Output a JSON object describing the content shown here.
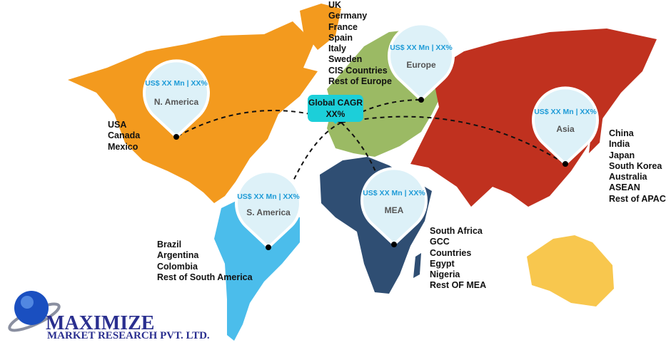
{
  "colors": {
    "north_america": "#F39A1E",
    "south_america": "#4BBDEB",
    "europe": "#9BBA64",
    "africa": "#2F4E73",
    "asia": "#C0311F",
    "australia": "#F8C74E",
    "pin_fill": "#DDF1F8",
    "pin_value_text": "#1E9BD7",
    "cagr_box": "#1CCFD9"
  },
  "global_cagr": {
    "title": "Global CAGR",
    "value": "XX%"
  },
  "regions": [
    {
      "name": "N. America",
      "value": "US$ XX Mn | XX%",
      "countries": [
        "USA",
        "Canada",
        "Mexico"
      ]
    },
    {
      "name": "Europe",
      "value": "US$ XX Mn | XX%",
      "countries": [
        "UK",
        "Germany",
        "France",
        "Spain",
        "Italy",
        "Sweden",
        "CIS Countries",
        "Rest of Europe"
      ]
    },
    {
      "name": "Asia",
      "value": "US$ XX Mn | XX%",
      "countries": [
        "China",
        "India",
        "Japan",
        "South Korea",
        "Australia",
        "ASEAN",
        "Rest of APAC"
      ]
    },
    {
      "name": "S. America",
      "value": "US$ XX Mn | XX%",
      "countries": [
        "Brazil",
        "Argentina",
        "Colombia",
        "Rest of South America"
      ]
    },
    {
      "name": "MEA",
      "value": "US$ XX Mn | XX%",
      "countries": [
        "South Africa",
        "GCC",
        "Countries",
        "Egypt",
        "Nigeria",
        "Rest OF MEA"
      ]
    }
  ],
  "logo": {
    "name": "MAXIMIZE",
    "subtitle": "MARKET RESEARCH PVT. LTD."
  }
}
